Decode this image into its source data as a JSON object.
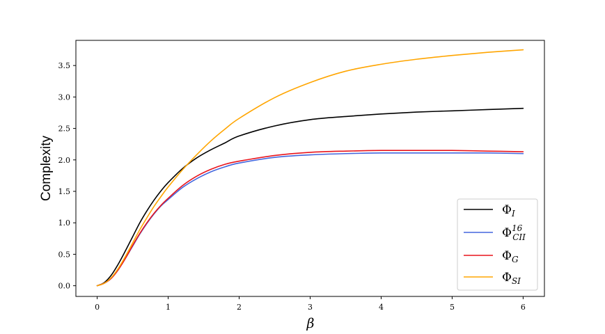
{
  "chart_data": {
    "type": "line",
    "title": "",
    "xlabel": "β",
    "ylabel": "Complexity",
    "xlim": [
      -0.3,
      6.3
    ],
    "ylim": [
      -0.17,
      3.9
    ],
    "xticks": [
      0,
      1,
      2,
      3,
      4,
      5,
      6
    ],
    "yticks": [
      0.0,
      0.5,
      1.0,
      1.5,
      2.0,
      2.5,
      3.0,
      3.5
    ],
    "grid": false,
    "legend_position": "bottom-right",
    "series": [
      {
        "key": "phi_i",
        "name": "Φ",
        "sub": "I",
        "sup": "",
        "color": "#000000",
        "x": [
          0,
          0.1,
          0.2,
          0.3,
          0.4,
          0.5,
          0.6,
          0.7,
          0.8,
          0.9,
          1.0,
          1.2,
          1.4,
          1.6,
          1.8,
          2.0,
          2.5,
          3.0,
          3.5,
          4.0,
          4.5,
          5.0,
          5.5,
          6.0
        ],
        "y": [
          0.0,
          0.05,
          0.17,
          0.35,
          0.56,
          0.78,
          1.0,
          1.19,
          1.36,
          1.51,
          1.64,
          1.86,
          2.03,
          2.16,
          2.27,
          2.38,
          2.54,
          2.64,
          2.69,
          2.73,
          2.76,
          2.78,
          2.8,
          2.82
        ]
      },
      {
        "key": "phi_cii",
        "name": "Φ",
        "sub": "CII",
        "sup": "16",
        "color": "#4466dd",
        "x": [
          0,
          0.1,
          0.2,
          0.3,
          0.4,
          0.5,
          0.6,
          0.7,
          0.8,
          0.9,
          1.0,
          1.2,
          1.4,
          1.6,
          1.8,
          2.0,
          2.5,
          3.0,
          3.5,
          4.0,
          4.5,
          5.0,
          5.5,
          6.0
        ],
        "y": [
          0.0,
          0.04,
          0.12,
          0.26,
          0.44,
          0.63,
          0.82,
          0.99,
          1.14,
          1.27,
          1.37,
          1.56,
          1.7,
          1.81,
          1.89,
          1.95,
          2.04,
          2.08,
          2.1,
          2.11,
          2.11,
          2.11,
          2.11,
          2.1
        ]
      },
      {
        "key": "phi_g",
        "name": "Φ",
        "sub": "G",
        "sup": "",
        "color": "#e8141c",
        "x": [
          0,
          0.1,
          0.2,
          0.3,
          0.4,
          0.5,
          0.6,
          0.7,
          0.8,
          0.9,
          1.0,
          1.2,
          1.4,
          1.6,
          1.8,
          2.0,
          2.5,
          3.0,
          3.5,
          4.0,
          4.5,
          5.0,
          5.5,
          6.0
        ],
        "y": [
          0.0,
          0.04,
          0.12,
          0.26,
          0.44,
          0.64,
          0.83,
          1.0,
          1.15,
          1.28,
          1.39,
          1.59,
          1.74,
          1.85,
          1.93,
          1.98,
          2.07,
          2.12,
          2.14,
          2.15,
          2.15,
          2.15,
          2.14,
          2.13
        ]
      },
      {
        "key": "phi_si",
        "name": "Φ",
        "sub": "SI",
        "sup": "",
        "color": "#ffa500",
        "x": [
          0,
          0.1,
          0.2,
          0.3,
          0.4,
          0.5,
          0.6,
          0.7,
          0.8,
          0.9,
          1.0,
          1.2,
          1.4,
          1.6,
          1.8,
          2.0,
          2.5,
          3.0,
          3.5,
          4.0,
          4.5,
          5.0,
          5.5,
          6.0
        ],
        "y": [
          0.0,
          0.04,
          0.13,
          0.28,
          0.47,
          0.68,
          0.89,
          1.08,
          1.26,
          1.42,
          1.57,
          1.84,
          2.08,
          2.3,
          2.49,
          2.66,
          2.99,
          3.23,
          3.41,
          3.52,
          3.6,
          3.66,
          3.71,
          3.75
        ]
      }
    ]
  }
}
